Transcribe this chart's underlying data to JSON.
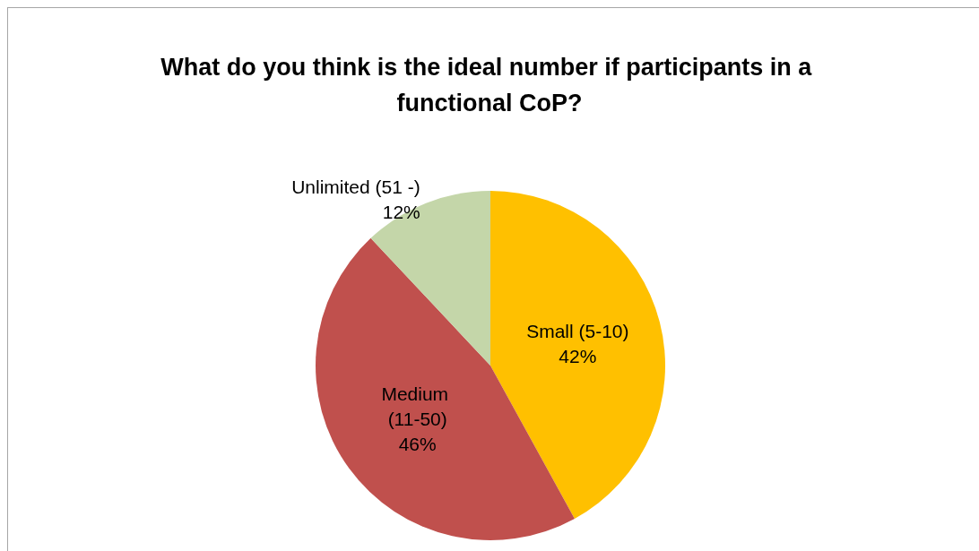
{
  "chart_data": {
    "type": "pie",
    "title": "What do you think is the ideal number if participants in a functional CoP?",
    "categories": [
      "Small (5-10)",
      "Medium (11-50)",
      "Unlimited (51 -)"
    ],
    "values": [
      42,
      46,
      12
    ],
    "colors": [
      "#ffc000",
      "#c0504d",
      "#c4d6a9"
    ],
    "value_labels": [
      "42%",
      "46%",
      "12%"
    ],
    "legend": false
  }
}
